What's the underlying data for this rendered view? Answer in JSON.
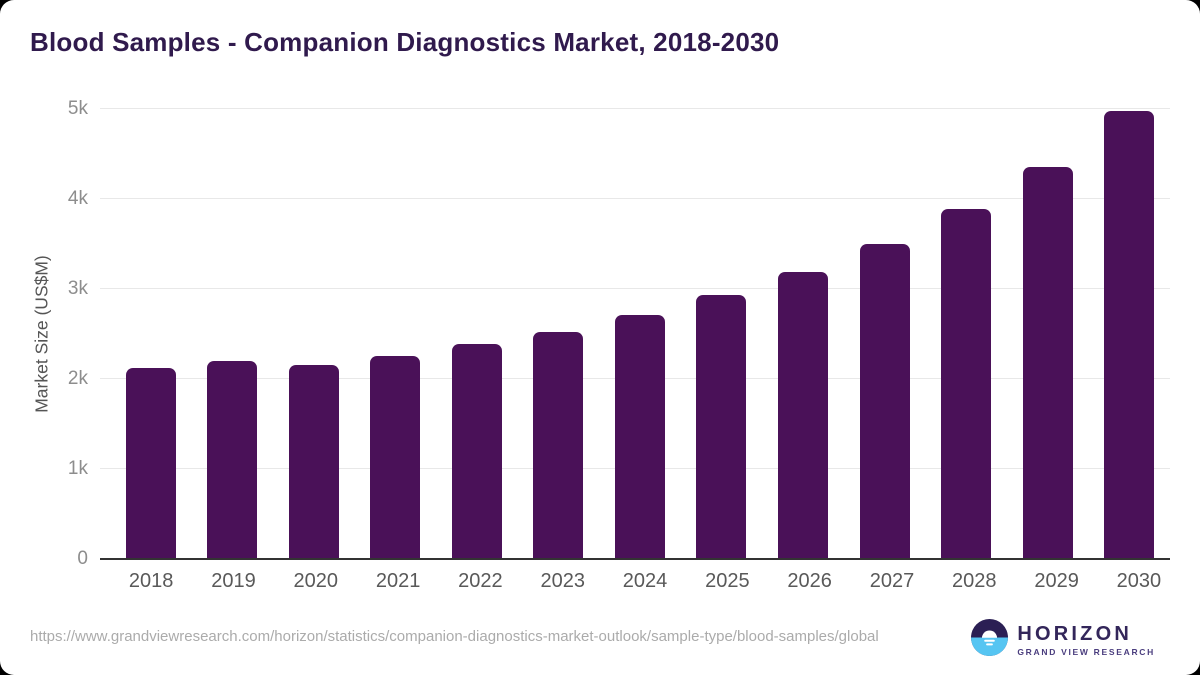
{
  "header": {
    "title": "Blood Samples - Companion Diagnostics Market, 2018-2030"
  },
  "chart_data": {
    "type": "bar",
    "title": "Blood Samples - Companion Diagnostics Market, 2018-2030",
    "categories": [
      "2018",
      "2019",
      "2020",
      "2021",
      "2022",
      "2023",
      "2024",
      "2025",
      "2026",
      "2027",
      "2028",
      "2029",
      "2030"
    ],
    "values": [
      2120,
      2200,
      2155,
      2255,
      2390,
      2520,
      2710,
      2930,
      3185,
      3500,
      3890,
      4360,
      4980
    ],
    "xlabel": "",
    "ylabel": "Market Size (US$M)",
    "ylim": [
      0,
      5000
    ],
    "yticks": [
      0,
      1000,
      2000,
      3000,
      4000,
      5000
    ],
    "ytick_labels": [
      "0",
      "1k",
      "2k",
      "3k",
      "4k",
      "5k"
    ],
    "grid": true,
    "legend": false,
    "bar_color": "#4a1158"
  },
  "footer": {
    "source_url": "https://www.grandviewresearch.com/horizon/statistics/companion-diagnostics-market-outlook/sample-type/blood-samples/global",
    "logo": {
      "name": "HORIZON",
      "tagline": "GRAND VIEW RESEARCH",
      "icon": "horizon-sun-icon"
    }
  },
  "colors": {
    "bar": "#4a1158",
    "title": "#301a4d",
    "axis_title": "#555555",
    "tick_label": "#8d8d8d",
    "x_label": "#595959",
    "gridline": "#e8e8e8",
    "baseline": "#333333",
    "url_text": "#ababab",
    "logo_dark": "#2b1f54",
    "logo_blue": "#56c5f2",
    "logo_text": "#33265a",
    "logo_tagline": "#4a3d7e",
    "card_background": "#ffffff",
    "page_background": "#000000"
  }
}
